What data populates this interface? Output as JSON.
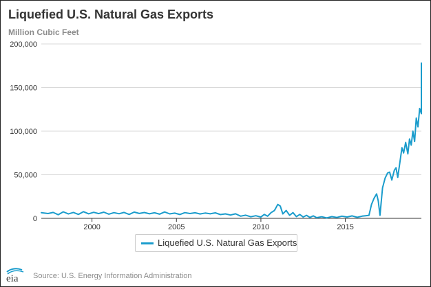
{
  "chart_data": {
    "type": "line",
    "title": "Liquefied U.S. Natural Gas Exports",
    "subtitle": "Million Cubic Feet",
    "xlabel": "",
    "ylabel": "",
    "xlim": [
      1997,
      2019.5
    ],
    "ylim": [
      0,
      200000
    ],
    "x_ticks": [
      "2000",
      "2005",
      "2010",
      "2015"
    ],
    "y_ticks": [
      "0",
      "50,000",
      "100,000",
      "150,000",
      "200,000"
    ],
    "grid": true,
    "legend_position": "bottom-center",
    "series": [
      {
        "name": "Liquefied U.S. Natural Gas Exports",
        "color": "#1a9ccc",
        "points": [
          [
            1997.0,
            6500
          ],
          [
            1997.4,
            5500
          ],
          [
            1997.7,
            6800
          ],
          [
            1998.0,
            4200
          ],
          [
            1998.3,
            7500
          ],
          [
            1998.6,
            5000
          ],
          [
            1998.9,
            6800
          ],
          [
            1999.2,
            4500
          ],
          [
            1999.5,
            7600
          ],
          [
            1999.8,
            5200
          ],
          [
            2000.1,
            6900
          ],
          [
            2000.4,
            5400
          ],
          [
            2000.7,
            7100
          ],
          [
            2001.0,
            4800
          ],
          [
            2001.3,
            6500
          ],
          [
            2001.6,
            5300
          ],
          [
            2001.9,
            6800
          ],
          [
            2002.2,
            4500
          ],
          [
            2002.5,
            7200
          ],
          [
            2002.8,
            5600
          ],
          [
            2003.1,
            6700
          ],
          [
            2003.4,
            5200
          ],
          [
            2003.7,
            6400
          ],
          [
            2004.0,
            4800
          ],
          [
            2004.3,
            7300
          ],
          [
            2004.6,
            5100
          ],
          [
            2004.9,
            6000
          ],
          [
            2005.2,
            4400
          ],
          [
            2005.5,
            6500
          ],
          [
            2005.8,
            5500
          ],
          [
            2006.1,
            6400
          ],
          [
            2006.4,
            5000
          ],
          [
            2006.7,
            6100
          ],
          [
            2007.0,
            5200
          ],
          [
            2007.3,
            6300
          ],
          [
            2007.6,
            4300
          ],
          [
            2007.9,
            5100
          ],
          [
            2008.2,
            3800
          ],
          [
            2008.5,
            5200
          ],
          [
            2008.8,
            2500
          ],
          [
            2009.1,
            3600
          ],
          [
            2009.4,
            1800
          ],
          [
            2009.7,
            3000
          ],
          [
            2010.0,
            1500
          ],
          [
            2010.2,
            4500
          ],
          [
            2010.4,
            2500
          ],
          [
            2010.6,
            6500
          ],
          [
            2010.8,
            9000
          ],
          [
            2011.0,
            16000
          ],
          [
            2011.15,
            14000
          ],
          [
            2011.3,
            5000
          ],
          [
            2011.5,
            9000
          ],
          [
            2011.7,
            3500
          ],
          [
            2011.9,
            6500
          ],
          [
            2012.1,
            2000
          ],
          [
            2012.3,
            4500
          ],
          [
            2012.5,
            1500
          ],
          [
            2012.7,
            3500
          ],
          [
            2012.9,
            1000
          ],
          [
            2013.1,
            2800
          ],
          [
            2013.3,
            800
          ],
          [
            2013.6,
            1800
          ],
          [
            2013.9,
            500
          ],
          [
            2014.2,
            2000
          ],
          [
            2014.5,
            1000
          ],
          [
            2014.8,
            2500
          ],
          [
            2015.1,
            1500
          ],
          [
            2015.4,
            2800
          ],
          [
            2015.7,
            1200
          ],
          [
            2016.0,
            2500
          ],
          [
            2016.2,
            3000
          ],
          [
            2016.4,
            3500
          ],
          [
            2016.55,
            16000
          ],
          [
            2016.7,
            23000
          ],
          [
            2016.85,
            28000
          ],
          [
            2016.95,
            20000
          ],
          [
            2017.05,
            3500
          ],
          [
            2017.2,
            35000
          ],
          [
            2017.35,
            46000
          ],
          [
            2017.5,
            52000
          ],
          [
            2017.62,
            53000
          ],
          [
            2017.75,
            44000
          ],
          [
            2017.9,
            55000
          ],
          [
            2018.0,
            58000
          ],
          [
            2018.1,
            47000
          ],
          [
            2018.22,
            63000
          ],
          [
            2018.35,
            81000
          ],
          [
            2018.45,
            75000
          ],
          [
            2018.57,
            87000
          ],
          [
            2018.7,
            74000
          ],
          [
            2018.8,
            91000
          ],
          [
            2018.9,
            84000
          ],
          [
            2019.0,
            100000
          ],
          [
            2019.1,
            88000
          ],
          [
            2019.2,
            115000
          ],
          [
            2019.3,
            105000
          ],
          [
            2019.4,
            126000
          ],
          [
            2019.5,
            120000
          ],
          [
            2019.6,
            130000
          ],
          [
            2019.7,
            139000
          ],
          [
            2019.8,
            128000
          ],
          [
            2019.88,
            157000
          ],
          [
            2019.95,
            140000
          ],
          [
            2020.05,
            168000
          ],
          [
            2020.12,
            178000
          ]
        ]
      }
    ]
  },
  "source": "Source: U.S. Energy Information Administration",
  "logo_text": "eia",
  "colors": {
    "line": "#1a9ccc",
    "grid": "#d9d9d9",
    "axis": "#333333",
    "text": "#333333",
    "muted": "#8c8c8c",
    "logo": "#1a9ccc"
  }
}
